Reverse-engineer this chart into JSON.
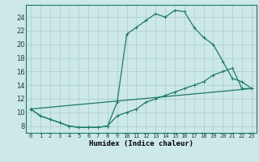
{
  "xlabel": "Humidex (Indice chaleur)",
  "xlim": [
    -0.5,
    23.5
  ],
  "ylim": [
    7.0,
    25.8
  ],
  "xticks": [
    0,
    1,
    2,
    3,
    4,
    5,
    6,
    7,
    8,
    9,
    10,
    11,
    12,
    13,
    14,
    15,
    16,
    17,
    18,
    19,
    20,
    21,
    22,
    23
  ],
  "yticks": [
    8,
    10,
    12,
    14,
    16,
    18,
    20,
    22,
    24
  ],
  "line_color": "#1e7a65",
  "bg_color": "#cce8e8",
  "grid_color": "#aacccc",
  "line1_x": [
    0,
    1,
    2,
    3,
    4,
    5,
    6,
    7,
    8,
    9,
    10,
    11,
    12,
    13,
    14,
    15,
    16,
    17,
    18,
    19,
    20,
    21,
    22,
    23
  ],
  "line1_y": [
    10.5,
    9.5,
    9.0,
    8.5,
    8.0,
    7.8,
    7.8,
    7.8,
    8.0,
    11.5,
    21.5,
    22.5,
    23.5,
    24.5,
    24.0,
    25.0,
    24.8,
    22.5,
    21.0,
    20.0,
    17.5,
    15.0,
    14.5,
    13.5
  ],
  "line2_x": [
    0,
    1,
    2,
    3,
    4,
    5,
    6,
    7,
    8,
    9,
    10,
    11,
    12,
    13,
    14,
    15,
    16,
    17,
    18,
    19,
    20,
    21,
    22,
    23
  ],
  "line2_y": [
    10.5,
    9.5,
    9.0,
    8.5,
    8.0,
    7.8,
    7.8,
    7.8,
    8.0,
    9.5,
    10.0,
    10.5,
    11.5,
    12.0,
    12.5,
    13.0,
    13.5,
    14.0,
    14.5,
    15.5,
    16.0,
    16.5,
    13.5,
    13.5
  ],
  "line3_x": [
    0,
    23
  ],
  "line3_y": [
    10.5,
    13.5
  ],
  "marker_size": 2.5,
  "linewidth": 0.9
}
